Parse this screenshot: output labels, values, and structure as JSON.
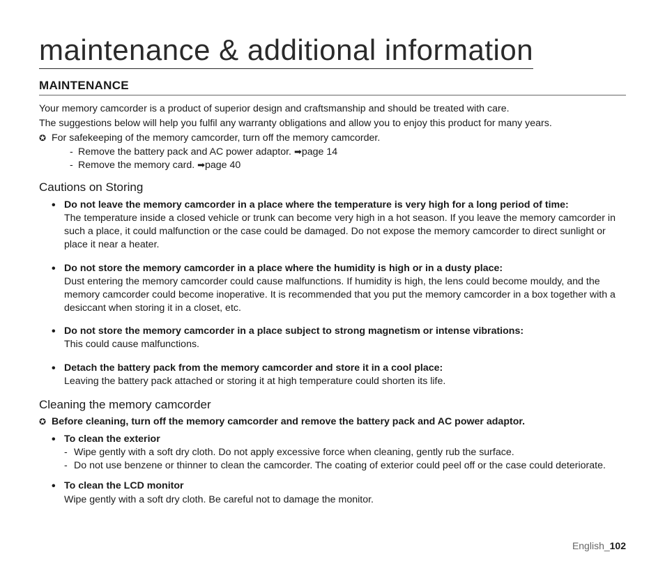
{
  "title": "maintenance & additional information",
  "section": "MAINTENANCE",
  "intro1": "Your memory camcorder is a product of superior design and craftsmanship and should be treated with care.",
  "intro2": "The suggestions below will help you fulfil any warranty obligations and allow you to enjoy this product for many years.",
  "safekeep": "For safekeeping of the memory camcorder, turn off the memory camcorder.",
  "dash1a": "Remove the battery pack and AC power adaptor. ",
  "dash1aref": "page 14",
  "dash1b": "Remove the memory card. ",
  "dash1bref": "page 40",
  "cautions_heading": "Cautions on Storing",
  "cautions": [
    {
      "title": "Do not leave the memory camcorder in a place where the temperature is very high for a long period of time:",
      "body": "The temperature inside a closed vehicle or trunk can become very high in a hot season. If you leave the memory camcorder in such a place, it could malfunction or the case could be damaged. Do not expose the memory camcorder to direct sunlight or place it near a heater."
    },
    {
      "title": "Do not store the memory camcorder in a place where the humidity is high or in a dusty place:",
      "body": "Dust entering the memory camcorder could cause malfunctions. If humidity is high, the lens could become mouldy, and the memory camcorder could become inoperative. It is recommended that you put the memory camcorder in a box together with a desiccant when storing it in a closet, etc."
    },
    {
      "title": "Do not store the memory camcorder in a place subject to strong magnetism or intense vibrations:",
      "body": "This could cause malfunctions."
    },
    {
      "title": "Detach the battery pack from the memory camcorder and store it in a cool place:",
      "body": "Leaving the battery pack attached or storing it at high temperature could shorten its life."
    }
  ],
  "cleaning_heading": "Cleaning the memory camcorder",
  "cleaning_note": "Before cleaning, turn off the memory camcorder and remove the battery pack and AC power adaptor.",
  "clean_items": [
    {
      "title": "To clean the exterior",
      "lines": [
        "Wipe gently with a soft dry cloth. Do not apply excessive force when cleaning, gently rub the surface.",
        "Do not use benzene or thinner to clean the camcorder. The coating of exterior could peel off or the case could deteriorate."
      ]
    },
    {
      "title": "To clean the LCD monitor",
      "body": "Wipe gently with a soft dry cloth. Be careful not to damage the monitor."
    }
  ],
  "footer_lang": "English_",
  "footer_page": "102"
}
